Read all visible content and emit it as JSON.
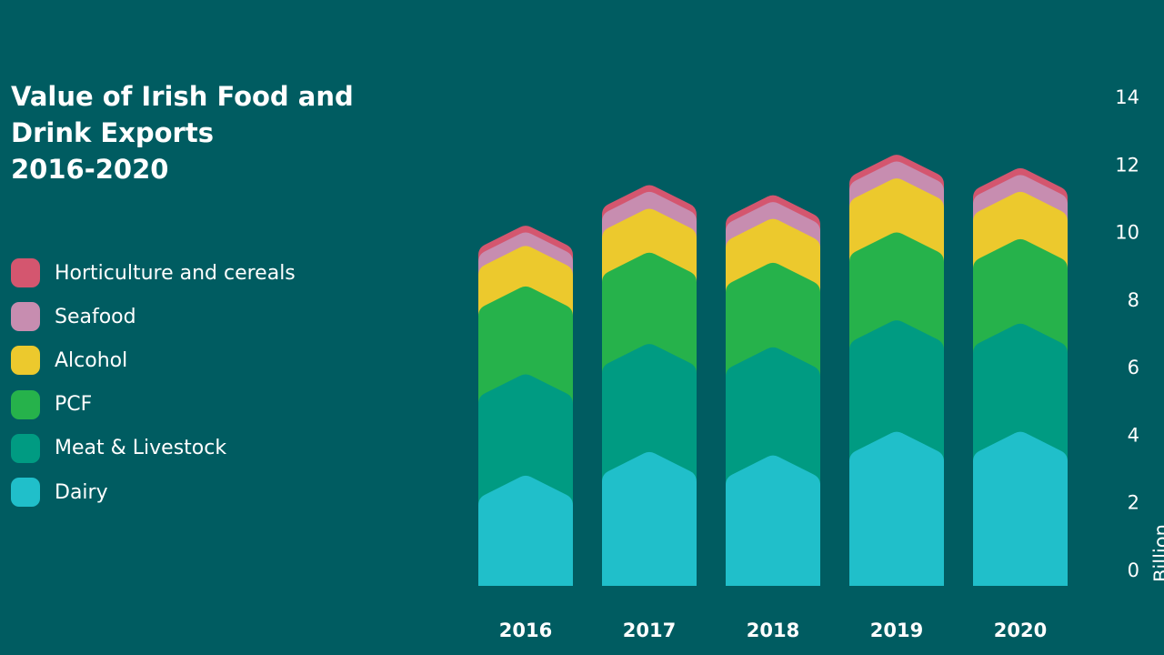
{
  "title_lines": [
    "Value of Irish Food and",
    "Drink Exports",
    "2016-2020"
  ],
  "axis_unit": "Billion",
  "chart_data": {
    "type": "bar",
    "stacked": true,
    "title": "Value of Irish Food and Drink Exports 2016-2020",
    "xlabel": "",
    "ylabel": "Billion",
    "ylim": [
      0,
      14
    ],
    "yticks": [
      0,
      2,
      4,
      6,
      8,
      10,
      12,
      14
    ],
    "categories": [
      "2016",
      "2017",
      "2018",
      "2019",
      "2020"
    ],
    "series": [
      {
        "name": "Dairy",
        "color": "#20bfca",
        "values": [
          3.3,
          4.0,
          3.9,
          4.6,
          4.6
        ]
      },
      {
        "name": "Meat & Livestock",
        "color": "#009b82",
        "values": [
          3.0,
          3.2,
          3.2,
          3.3,
          3.2
        ]
      },
      {
        "name": "PCF",
        "color": "#26b24b",
        "values": [
          2.6,
          2.7,
          2.5,
          2.6,
          2.5
        ]
      },
      {
        "name": "Alcohol",
        "color": "#ecc92d",
        "values": [
          1.2,
          1.3,
          1.3,
          1.6,
          1.4
        ]
      },
      {
        "name": "Seafood",
        "color": "#c78db0",
        "values": [
          0.4,
          0.5,
          0.5,
          0.5,
          0.5
        ]
      },
      {
        "name": "Horticulture and cereals",
        "color": "#d4566f",
        "values": [
          0.2,
          0.2,
          0.2,
          0.2,
          0.2
        ]
      }
    ],
    "legend_order": [
      "Horticulture and cereals",
      "Seafood",
      "Alcohol",
      "PCF",
      "Meat & Livestock",
      "Dairy"
    ],
    "grid": true,
    "legend_position": "left"
  }
}
